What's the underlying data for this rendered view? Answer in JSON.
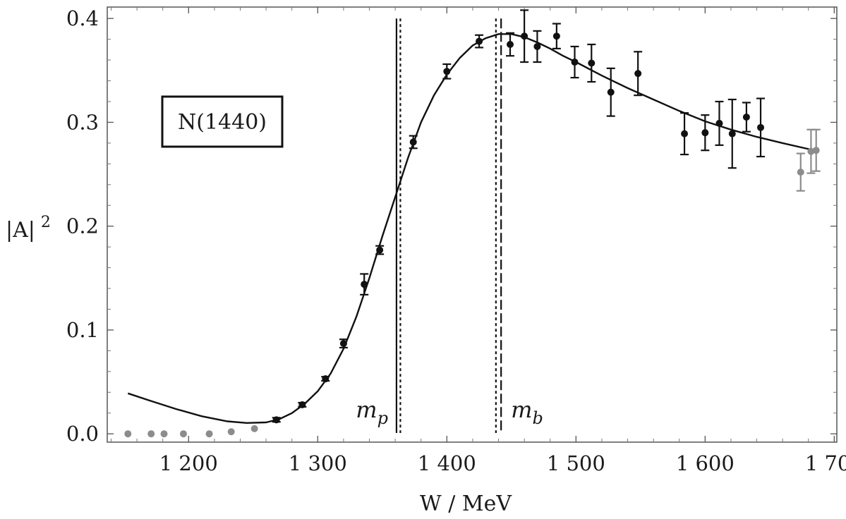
{
  "chart_data": {
    "type": "scatter",
    "title": "",
    "xlabel": "W / MeV",
    "ylabel": "|A|",
    "ylabel_sup": "2",
    "annotation": "N(1440)",
    "xlim": [
      1137,
      1702
    ],
    "ylim": [
      -0.008,
      0.411
    ],
    "x_ticks": [
      1200,
      1300,
      1400,
      1500,
      1600,
      1700
    ],
    "x_tick_labels": [
      "1 200",
      "1 300",
      "1 400",
      "1 500",
      "1 600",
      "1 700"
    ],
    "y_ticks": [
      0.0,
      0.1,
      0.2,
      0.3,
      0.4
    ],
    "y_tick_labels": [
      "0.0",
      "0.1",
      "0.2",
      "0.3",
      "0.4"
    ],
    "colors": {
      "data": "#111111",
      "excluded": "#8c8c8c",
      "curve": "#111111"
    },
    "vertical_lines": [
      {
        "x": 1361,
        "style": "solid",
        "label": "m",
        "label_sub": "p"
      },
      {
        "x": 1364,
        "style": "dotted"
      },
      {
        "x": 1438,
        "style": "dotted"
      },
      {
        "x": 1442,
        "style": "dashed",
        "label": "m",
        "label_sub": "b"
      }
    ],
    "series": [
      {
        "style": "points-with-errors",
        "color": "#111111",
        "points": [
          {
            "x": 1268,
            "y": 0.0135,
            "err": 0.002
          },
          {
            "x": 1288,
            "y": 0.028,
            "err": 0.002
          },
          {
            "x": 1306,
            "y": 0.053,
            "err": 0.002
          },
          {
            "x": 1320,
            "y": 0.087,
            "err": 0.004
          },
          {
            "x": 1336,
            "y": 0.144,
            "err": 0.01
          },
          {
            "x": 1348,
            "y": 0.177,
            "err": 0.004
          },
          {
            "x": 1374,
            "y": 0.281,
            "err": 0.006
          },
          {
            "x": 1400,
            "y": 0.349,
            "err": 0.007
          },
          {
            "x": 1425,
            "y": 0.378,
            "err": 0.006
          },
          {
            "x": 1449,
            "y": 0.375,
            "err": 0.011
          },
          {
            "x": 1460,
            "y": 0.383,
            "err": 0.025
          },
          {
            "x": 1470,
            "y": 0.373,
            "err": 0.015
          },
          {
            "x": 1485,
            "y": 0.383,
            "err": 0.012
          },
          {
            "x": 1499,
            "y": 0.358,
            "err": 0.015
          },
          {
            "x": 1512,
            "y": 0.357,
            "err": 0.018
          },
          {
            "x": 1527,
            "y": 0.329,
            "err": 0.023
          },
          {
            "x": 1548,
            "y": 0.347,
            "err": 0.021
          },
          {
            "x": 1584,
            "y": 0.289,
            "err": 0.02
          },
          {
            "x": 1600,
            "y": 0.29,
            "err": 0.017
          },
          {
            "x": 1611,
            "y": 0.299,
            "err": 0.021
          },
          {
            "x": 1621,
            "y": 0.289,
            "err": 0.033
          },
          {
            "x": 1632,
            "y": 0.305,
            "err": 0.014
          },
          {
            "x": 1643,
            "y": 0.295,
            "err": 0.028
          }
        ]
      },
      {
        "style": "points-with-errors",
        "color": "#8c8c8c",
        "points": [
          {
            "x": 1674,
            "y": 0.252,
            "err": 0.018
          },
          {
            "x": 1682,
            "y": 0.272,
            "err": 0.021
          },
          {
            "x": 1686,
            "y": 0.273,
            "err": 0.02
          }
        ]
      },
      {
        "style": "points",
        "color": "#8c8c8c",
        "points": [
          {
            "x": 1153,
            "y": 0.0
          },
          {
            "x": 1171,
            "y": 0.0
          },
          {
            "x": 1181,
            "y": 0.0
          },
          {
            "x": 1196,
            "y": 0.0
          },
          {
            "x": 1216,
            "y": 0.0
          },
          {
            "x": 1233,
            "y": 0.002
          },
          {
            "x": 1251,
            "y": 0.005
          }
        ]
      },
      {
        "style": "line",
        "color": "#111111",
        "points": [
          {
            "x": 1153,
            "y": 0.039
          },
          {
            "x": 1170,
            "y": 0.032
          },
          {
            "x": 1190,
            "y": 0.024
          },
          {
            "x": 1210,
            "y": 0.017
          },
          {
            "x": 1230,
            "y": 0.012
          },
          {
            "x": 1245,
            "y": 0.0105
          },
          {
            "x": 1260,
            "y": 0.011
          },
          {
            "x": 1270,
            "y": 0.014
          },
          {
            "x": 1280,
            "y": 0.02
          },
          {
            "x": 1290,
            "y": 0.029
          },
          {
            "x": 1300,
            "y": 0.041
          },
          {
            "x": 1310,
            "y": 0.058
          },
          {
            "x": 1320,
            "y": 0.082
          },
          {
            "x": 1330,
            "y": 0.113
          },
          {
            "x": 1340,
            "y": 0.15
          },
          {
            "x": 1350,
            "y": 0.19
          },
          {
            "x": 1360,
            "y": 0.228
          },
          {
            "x": 1370,
            "y": 0.266
          },
          {
            "x": 1380,
            "y": 0.3
          },
          {
            "x": 1390,
            "y": 0.326
          },
          {
            "x": 1400,
            "y": 0.346
          },
          {
            "x": 1410,
            "y": 0.362
          },
          {
            "x": 1420,
            "y": 0.374
          },
          {
            "x": 1430,
            "y": 0.381
          },
          {
            "x": 1440,
            "y": 0.385
          },
          {
            "x": 1450,
            "y": 0.385
          },
          {
            "x": 1460,
            "y": 0.382
          },
          {
            "x": 1470,
            "y": 0.377
          },
          {
            "x": 1480,
            "y": 0.371
          },
          {
            "x": 1490,
            "y": 0.364
          },
          {
            "x": 1500,
            "y": 0.358
          },
          {
            "x": 1520,
            "y": 0.345
          },
          {
            "x": 1540,
            "y": 0.333
          },
          {
            "x": 1560,
            "y": 0.322
          },
          {
            "x": 1580,
            "y": 0.311
          },
          {
            "x": 1600,
            "y": 0.301
          },
          {
            "x": 1620,
            "y": 0.293
          },
          {
            "x": 1640,
            "y": 0.286
          },
          {
            "x": 1660,
            "y": 0.28
          },
          {
            "x": 1688,
            "y": 0.272
          }
        ]
      }
    ]
  }
}
